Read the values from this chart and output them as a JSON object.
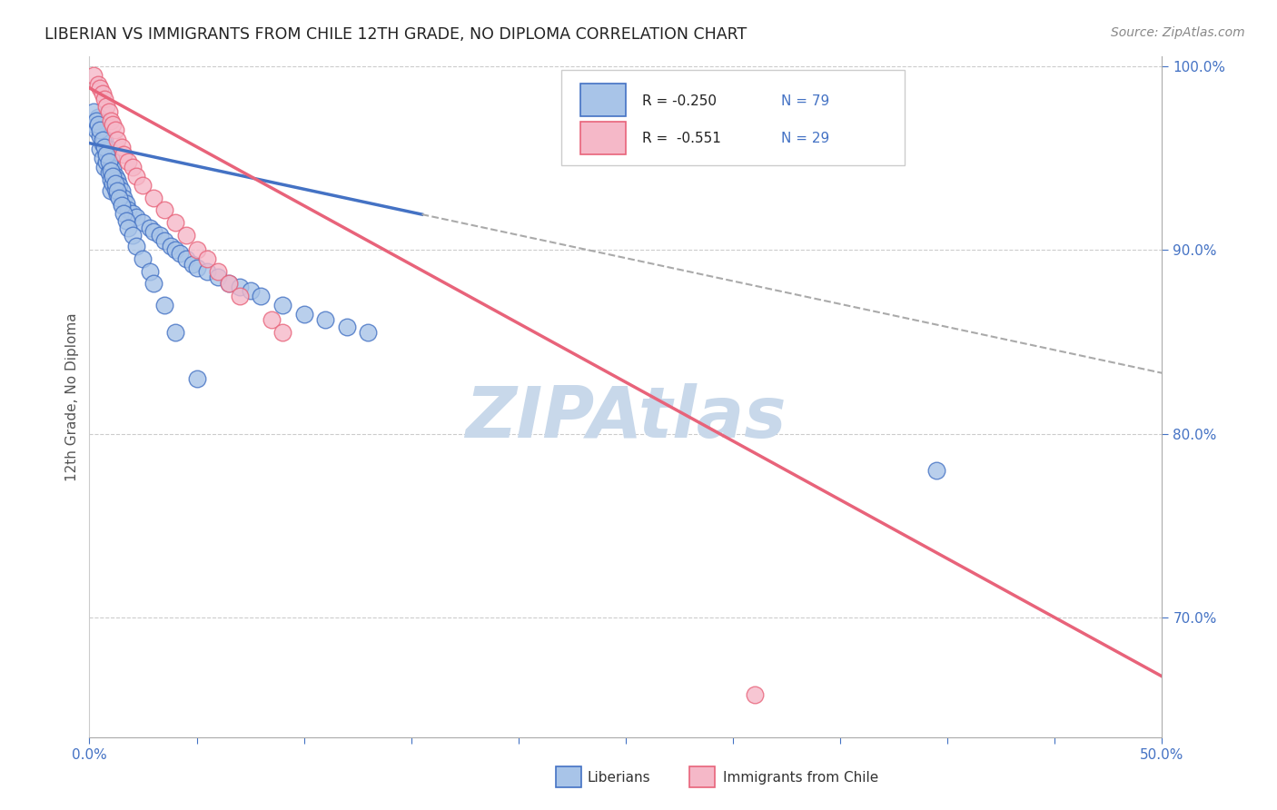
{
  "title": "LIBERIAN VS IMMIGRANTS FROM CHILE 12TH GRADE, NO DIPLOMA CORRELATION CHART",
  "source": "Source: ZipAtlas.com",
  "ylabel": "12th Grade, No Diploma",
  "xlabel_liberian": "Liberians",
  "xlabel_chile": "Immigrants from Chile",
  "xmin": 0.0,
  "xmax": 0.5,
  "ymin": 0.635,
  "ymax": 1.005,
  "legend_r_liberian": "-0.250",
  "legend_n_liberian": "79",
  "legend_r_chile": "-0.551",
  "legend_n_chile": "29",
  "color_liberian_fill": "#a8c4e8",
  "color_chile_fill": "#f5b8c8",
  "color_liberian_line": "#4472c4",
  "color_chile_line": "#e8637a",
  "color_text_blue": "#4472c4",
  "color_grid": "#cccccc",
  "color_watermark": "#c8d8ea",
  "liberian_x": [
    0.002,
    0.003,
    0.004,
    0.005,
    0.005,
    0.006,
    0.006,
    0.007,
    0.007,
    0.008,
    0.008,
    0.009,
    0.009,
    0.01,
    0.01,
    0.01,
    0.01,
    0.011,
    0.011,
    0.012,
    0.012,
    0.013,
    0.013,
    0.014,
    0.015,
    0.015,
    0.016,
    0.017,
    0.018,
    0.02,
    0.022,
    0.025,
    0.028,
    0.03,
    0.033,
    0.035,
    0.038,
    0.04,
    0.042,
    0.045,
    0.048,
    0.05,
    0.055,
    0.06,
    0.065,
    0.07,
    0.075,
    0.08,
    0.09,
    0.1,
    0.11,
    0.12,
    0.13,
    0.002,
    0.003,
    0.004,
    0.005,
    0.006,
    0.007,
    0.008,
    0.009,
    0.01,
    0.011,
    0.012,
    0.013,
    0.014,
    0.015,
    0.016,
    0.017,
    0.018,
    0.02,
    0.022,
    0.025,
    0.028,
    0.03,
    0.035,
    0.04,
    0.05,
    0.395
  ],
  "liberian_y": [
    0.968,
    0.965,
    0.972,
    0.955,
    0.962,
    0.958,
    0.95,
    0.96,
    0.945,
    0.953,
    0.948,
    0.955,
    0.942,
    0.95,
    0.945,
    0.938,
    0.932,
    0.944,
    0.936,
    0.94,
    0.933,
    0.938,
    0.93,
    0.935,
    0.932,
    0.925,
    0.928,
    0.925,
    0.922,
    0.92,
    0.918,
    0.915,
    0.912,
    0.91,
    0.908,
    0.905,
    0.902,
    0.9,
    0.898,
    0.895,
    0.892,
    0.89,
    0.888,
    0.885,
    0.882,
    0.88,
    0.878,
    0.875,
    0.87,
    0.865,
    0.862,
    0.858,
    0.855,
    0.975,
    0.97,
    0.968,
    0.965,
    0.96,
    0.956,
    0.952,
    0.948,
    0.943,
    0.94,
    0.936,
    0.932,
    0.928,
    0.924,
    0.92,
    0.916,
    0.912,
    0.908,
    0.902,
    0.895,
    0.888,
    0.882,
    0.87,
    0.855,
    0.83,
    0.78
  ],
  "chile_x": [
    0.002,
    0.004,
    0.005,
    0.006,
    0.007,
    0.008,
    0.009,
    0.01,
    0.011,
    0.012,
    0.013,
    0.015,
    0.016,
    0.018,
    0.02,
    0.022,
    0.025,
    0.03,
    0.035,
    0.04,
    0.045,
    0.05,
    0.055,
    0.06,
    0.065,
    0.07,
    0.085,
    0.09,
    0.31
  ],
  "chile_y": [
    0.995,
    0.99,
    0.988,
    0.985,
    0.982,
    0.978,
    0.975,
    0.97,
    0.968,
    0.965,
    0.96,
    0.956,
    0.952,
    0.948,
    0.945,
    0.94,
    0.935,
    0.928,
    0.922,
    0.915,
    0.908,
    0.9,
    0.895,
    0.888,
    0.882,
    0.875,
    0.862,
    0.855,
    0.658
  ],
  "lib_trend_x0": 0.0,
  "lib_trend_x1": 0.5,
  "lib_trend_y0": 0.958,
  "lib_trend_y1": 0.833,
  "lib_trend_solid_x1": 0.155,
  "chile_trend_x0": 0.0,
  "chile_trend_x1": 0.5,
  "chile_trend_y0": 0.988,
  "chile_trend_y1": 0.668,
  "xtick_positions": [
    0.0,
    0.05,
    0.1,
    0.15,
    0.2,
    0.25,
    0.3,
    0.35,
    0.4,
    0.45,
    0.5
  ],
  "xtick_labels_ends": {
    "0.0": "0.0%",
    "0.5": "50.0%"
  },
  "ytick_positions": [
    0.7,
    0.8,
    0.9,
    1.0
  ],
  "ytick_labels": [
    "70.0%",
    "80.0%",
    "90.0%",
    "100.0%"
  ],
  "grid_yticks": [
    0.7,
    0.8,
    0.9,
    1.0
  ]
}
